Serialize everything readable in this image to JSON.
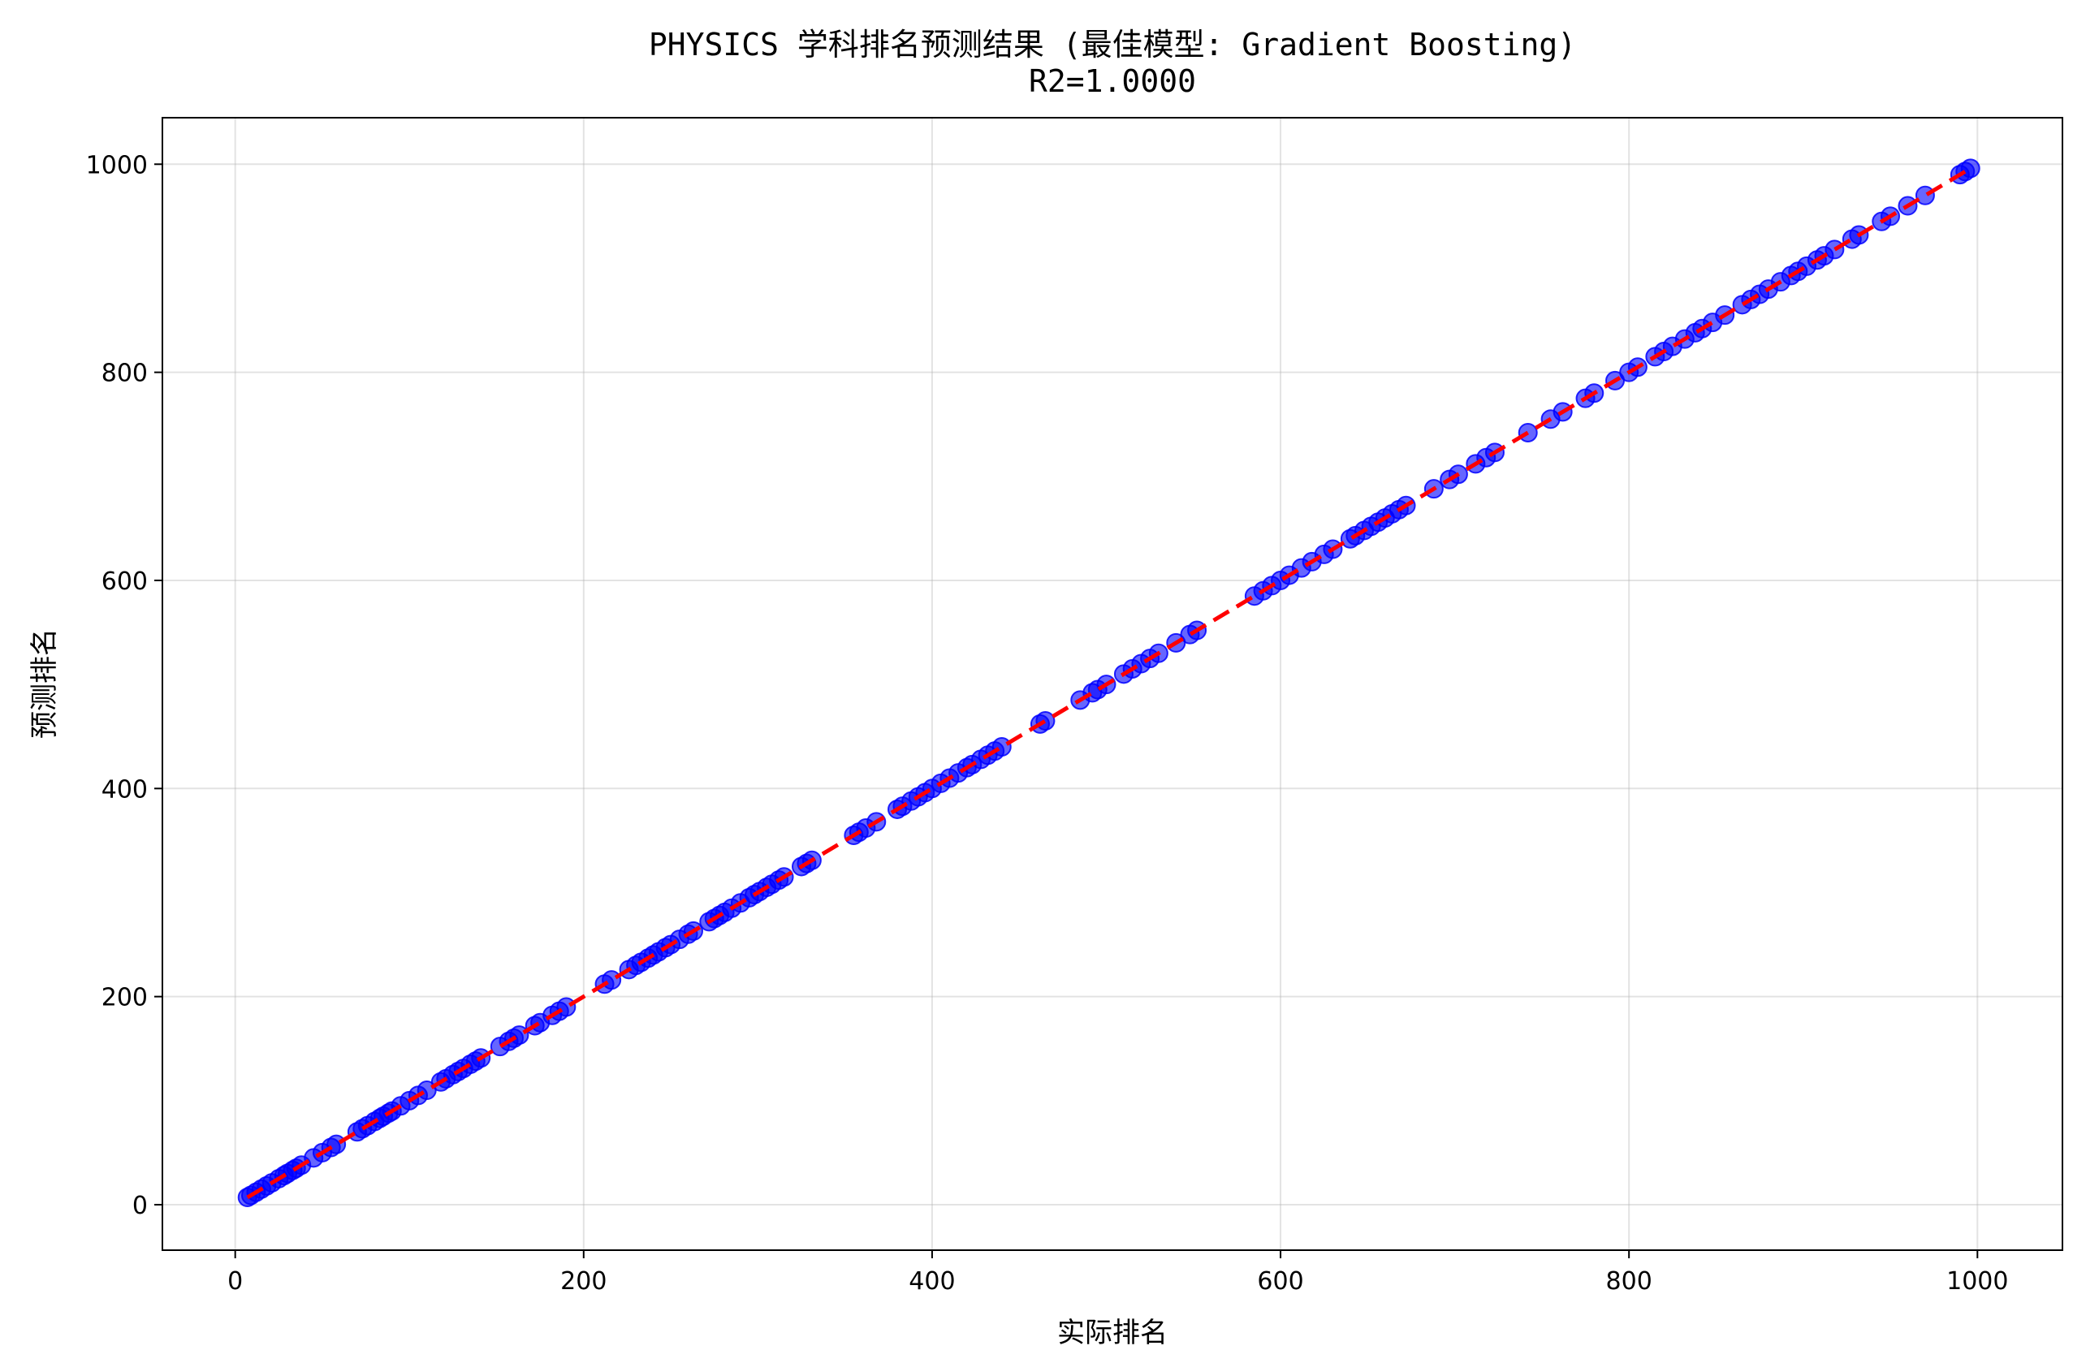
{
  "chart_data": {
    "type": "scatter",
    "title": "PHYSICS 学科排名预测结果 (最佳模型: Gradient Boosting)",
    "subtitle": "R2=1.0000",
    "xlabel": "实际排名",
    "ylabel": "预测排名",
    "xlim": [
      -41.8,
      1048.8
    ],
    "ylim": [
      -43.7,
      1044.7
    ],
    "x_ticks": [
      0,
      200,
      400,
      600,
      800,
      1000
    ],
    "y_ticks": [
      0,
      200,
      400,
      600,
      800,
      1000
    ],
    "grid": true,
    "point_color": "#0000ff",
    "line_color": "#ff0000",
    "reference_line": {
      "style": "dashed",
      "x": [
        7,
        995
      ],
      "y": [
        7,
        995
      ]
    },
    "series": [
      {
        "x": [
          7,
          9,
          12,
          15,
          18,
          21,
          25,
          28,
          30,
          33,
          35,
          38,
          45,
          50,
          55,
          58,
          70,
          73,
          76,
          80,
          83,
          85,
          88,
          90,
          95,
          100,
          105,
          110,
          118,
          121,
          125,
          128,
          131,
          135,
          138,
          141,
          152,
          157,
          160,
          163,
          172,
          175,
          182,
          186,
          190,
          212,
          216,
          226,
          230,
          233,
          237,
          240,
          243,
          247,
          250,
          255,
          260,
          263,
          272,
          275,
          278,
          281,
          285,
          290,
          295,
          298,
          301,
          305,
          308,
          312,
          315,
          325,
          328,
          331,
          355,
          358,
          362,
          368,
          380,
          383,
          388,
          392,
          396,
          400,
          405,
          410,
          415,
          420,
          423,
          428,
          432,
          436,
          440,
          462,
          465,
          485,
          492,
          495,
          500,
          510,
          515,
          520,
          525,
          530,
          540,
          548,
          552,
          585,
          590,
          595,
          600,
          605,
          612,
          618,
          625,
          630,
          640,
          643,
          648,
          652,
          656,
          660,
          664,
          668,
          672,
          688,
          697,
          702,
          712,
          718,
          723,
          742,
          755,
          762,
          775,
          780,
          792,
          800,
          805,
          815,
          820,
          825,
          832,
          838,
          842,
          848,
          855,
          865,
          870,
          875,
          880,
          887,
          893,
          897,
          902,
          908,
          912,
          918,
          928,
          932,
          945,
          950,
          960,
          970,
          990,
          993,
          996
        ],
        "y": [
          7,
          9,
          12,
          15,
          18,
          21,
          25,
          28,
          30,
          33,
          35,
          38,
          45,
          50,
          55,
          58,
          70,
          73,
          76,
          80,
          83,
          85,
          88,
          90,
          95,
          100,
          105,
          110,
          118,
          121,
          125,
          128,
          131,
          135,
          138,
          141,
          152,
          157,
          160,
          163,
          172,
          175,
          182,
          186,
          190,
          212,
          216,
          226,
          230,
          233,
          237,
          240,
          243,
          247,
          250,
          255,
          260,
          263,
          272,
          275,
          278,
          281,
          285,
          290,
          295,
          298,
          301,
          305,
          308,
          312,
          315,
          325,
          328,
          331,
          355,
          358,
          362,
          368,
          380,
          383,
          388,
          392,
          396,
          400,
          405,
          410,
          415,
          420,
          423,
          428,
          432,
          436,
          440,
          462,
          465,
          485,
          492,
          495,
          500,
          510,
          515,
          520,
          525,
          530,
          540,
          548,
          552,
          585,
          590,
          595,
          600,
          605,
          612,
          618,
          625,
          630,
          640,
          643,
          648,
          652,
          656,
          660,
          664,
          668,
          672,
          688,
          697,
          702,
          712,
          718,
          723,
          742,
          755,
          762,
          775,
          780,
          792,
          800,
          805,
          815,
          820,
          825,
          832,
          838,
          842,
          848,
          855,
          865,
          870,
          875,
          880,
          887,
          893,
          897,
          902,
          908,
          912,
          918,
          928,
          932,
          945,
          950,
          960,
          970,
          990,
          993,
          996
        ]
      }
    ]
  }
}
